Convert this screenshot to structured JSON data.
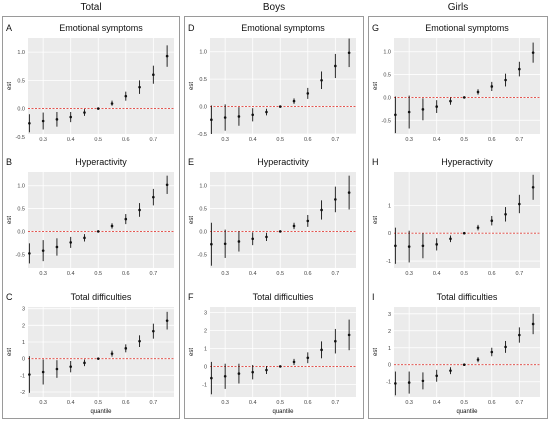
{
  "columns": [
    {
      "title": "Total"
    },
    {
      "title": "Boys"
    },
    {
      "title": "Girls"
    }
  ],
  "colors": {
    "panel_bg": "#ebebeb",
    "grid": "#ffffff",
    "point": "#111111",
    "refline": "#e0403a"
  },
  "chart_data": [
    {
      "type": "scatter",
      "panel_letter": "A",
      "title": "Emotional symptoms",
      "xlabel": "",
      "ylabel": "est",
      "x_ticks": [
        "0.3",
        "0.4",
        "0.5",
        "0.6",
        "0.7"
      ],
      "y_ticks": [
        "-0.5",
        "0.0",
        "0.5",
        "1.0"
      ],
      "xlim": [
        0.245,
        0.775
      ],
      "ylim": [
        -0.45,
        1.25
      ],
      "refline_y": 0,
      "x": [
        0.25,
        0.3,
        0.35,
        0.4,
        0.45,
        0.5,
        0.55,
        0.6,
        0.65,
        0.7,
        0.75
      ],
      "est": [
        -0.26,
        -0.22,
        -0.19,
        -0.15,
        -0.07,
        0.0,
        0.09,
        0.22,
        0.38,
        0.6,
        0.93
      ],
      "lower": [
        -0.42,
        -0.37,
        -0.32,
        -0.24,
        -0.13,
        0.0,
        0.05,
        0.14,
        0.26,
        0.44,
        0.74
      ],
      "upper": [
        -0.1,
        -0.07,
        -0.06,
        -0.06,
        -0.01,
        0.0,
        0.14,
        0.3,
        0.5,
        0.76,
        1.12
      ]
    },
    {
      "type": "scatter",
      "panel_letter": "B",
      "title": "Hyperactivity",
      "xlabel": "",
      "ylabel": "est",
      "x_ticks": [
        "0.3",
        "0.4",
        "0.5",
        "0.6",
        "0.7"
      ],
      "y_ticks": [
        "-0.5",
        "0.0",
        "0.5",
        "1.0"
      ],
      "xlim": [
        0.245,
        0.775
      ],
      "ylim": [
        -0.8,
        1.3
      ],
      "refline_y": 0,
      "x": [
        0.25,
        0.3,
        0.35,
        0.4,
        0.45,
        0.5,
        0.55,
        0.6,
        0.65,
        0.7,
        0.75
      ],
      "est": [
        -0.48,
        -0.42,
        -0.34,
        -0.24,
        -0.14,
        0.0,
        0.12,
        0.27,
        0.47,
        0.75,
        1.02
      ],
      "lower": [
        -0.7,
        -0.65,
        -0.53,
        -0.36,
        -0.22,
        0.0,
        0.06,
        0.16,
        0.32,
        0.57,
        0.82
      ],
      "upper": [
        -0.26,
        -0.19,
        -0.15,
        -0.12,
        -0.06,
        0.0,
        0.18,
        0.38,
        0.62,
        0.93,
        1.22
      ]
    },
    {
      "type": "scatter",
      "panel_letter": "C",
      "title": "Total difficulties",
      "xlabel": "quantile",
      "ylabel": "est",
      "x_ticks": [
        "0.3",
        "0.4",
        "0.5",
        "0.6",
        "0.7"
      ],
      "y_ticks": [
        "-2",
        "-1",
        "0",
        "1",
        "2",
        "3"
      ],
      "xlim": [
        0.245,
        0.775
      ],
      "ylim": [
        -2.3,
        3.1
      ],
      "refline_y": 0,
      "x": [
        0.25,
        0.3,
        0.35,
        0.4,
        0.45,
        0.5,
        0.55,
        0.6,
        0.65,
        0.7,
        0.75
      ],
      "est": [
        -0.95,
        -0.8,
        -0.62,
        -0.48,
        -0.25,
        0.0,
        0.3,
        0.62,
        1.05,
        1.65,
        2.28
      ],
      "lower": [
        -2.05,
        -1.55,
        -1.15,
        -0.82,
        -0.45,
        0.0,
        0.12,
        0.38,
        0.7,
        1.2,
        1.75
      ],
      "upper": [
        0.15,
        -0.05,
        -0.09,
        -0.14,
        -0.05,
        0.0,
        0.48,
        0.86,
        1.4,
        2.1,
        2.81
      ]
    },
    {
      "type": "scatter",
      "panel_letter": "D",
      "title": "Emotional symptoms",
      "xlabel": "",
      "ylabel": "est",
      "x_ticks": [
        "0.3",
        "0.4",
        "0.5",
        "0.6",
        "0.7"
      ],
      "y_ticks": [
        "-0.5",
        "0.0",
        "0.5",
        "1.0"
      ],
      "xlim": [
        0.245,
        0.775
      ],
      "ylim": [
        -0.5,
        1.25
      ],
      "refline_y": 0,
      "x": [
        0.25,
        0.3,
        0.35,
        0.4,
        0.45,
        0.5,
        0.55,
        0.6,
        0.65,
        0.7,
        0.75
      ],
      "est": [
        -0.24,
        -0.2,
        -0.18,
        -0.15,
        -0.1,
        0.0,
        0.1,
        0.24,
        0.48,
        0.74,
        0.98
      ],
      "lower": [
        -0.5,
        -0.44,
        -0.35,
        -0.27,
        -0.16,
        0.0,
        0.05,
        0.14,
        0.32,
        0.52,
        0.72
      ],
      "upper": [
        0.02,
        0.04,
        -0.01,
        -0.03,
        -0.04,
        0.0,
        0.15,
        0.34,
        0.64,
        0.96,
        1.24
      ]
    },
    {
      "type": "scatter",
      "panel_letter": "E",
      "title": "Hyperactivity",
      "xlabel": "",
      "ylabel": "est",
      "x_ticks": [
        "0.3",
        "0.4",
        "0.5",
        "0.6",
        "0.7"
      ],
      "y_ticks": [
        "-0.5",
        "0.0",
        "0.5",
        "1.0"
      ],
      "xlim": [
        0.245,
        0.775
      ],
      "ylim": [
        -0.8,
        1.3
      ],
      "refline_y": 0,
      "x": [
        0.25,
        0.3,
        0.35,
        0.4,
        0.45,
        0.5,
        0.55,
        0.6,
        0.65,
        0.7,
        0.75
      ],
      "est": [
        -0.28,
        -0.27,
        -0.22,
        -0.16,
        -0.12,
        0.0,
        0.12,
        0.23,
        0.47,
        0.7,
        0.85
      ],
      "lower": [
        -0.75,
        -0.58,
        -0.44,
        -0.3,
        -0.21,
        0.0,
        0.05,
        0.1,
        0.26,
        0.42,
        0.48
      ],
      "upper": [
        0.19,
        0.04,
        0.0,
        -0.02,
        -0.03,
        0.0,
        0.19,
        0.36,
        0.68,
        0.98,
        1.22
      ]
    },
    {
      "type": "scatter",
      "panel_letter": "F",
      "title": "Total difficulties",
      "xlabel": "quantile",
      "ylabel": "est",
      "x_ticks": [
        "0.3",
        "0.4",
        "0.5",
        "0.6",
        "0.7"
      ],
      "y_ticks": [
        "-1",
        "0",
        "1",
        "2",
        "3"
      ],
      "xlim": [
        0.245,
        0.775
      ],
      "ylim": [
        -1.7,
        3.3
      ],
      "refline_y": 0,
      "x": [
        0.25,
        0.3,
        0.35,
        0.4,
        0.45,
        0.5,
        0.55,
        0.6,
        0.65,
        0.7,
        0.75
      ],
      "est": [
        -0.65,
        -0.55,
        -0.4,
        -0.32,
        -0.2,
        0.0,
        0.25,
        0.48,
        0.92,
        1.4,
        1.75
      ],
      "lower": [
        -1.55,
        -1.25,
        -0.95,
        -0.72,
        -0.42,
        0.0,
        0.08,
        0.18,
        0.45,
        0.72,
        0.9
      ],
      "upper": [
        0.25,
        0.15,
        0.15,
        0.08,
        0.02,
        0.0,
        0.42,
        0.78,
        1.39,
        2.08,
        2.6
      ]
    },
    {
      "type": "scatter",
      "panel_letter": "G",
      "title": "Emotional symptoms",
      "xlabel": "",
      "ylabel": "est",
      "x_ticks": [
        "0.3",
        "0.4",
        "0.5",
        "0.6",
        "0.7"
      ],
      "y_ticks": [
        "-0.5",
        "0.0",
        "0.5",
        "1.0"
      ],
      "xlim": [
        0.245,
        0.775
      ],
      "ylim": [
        -0.8,
        1.3
      ],
      "refline_y": 0,
      "x": [
        0.25,
        0.3,
        0.35,
        0.4,
        0.45,
        0.5,
        0.55,
        0.6,
        0.65,
        0.7,
        0.75
      ],
      "est": [
        -0.38,
        -0.32,
        -0.26,
        -0.2,
        -0.08,
        0.0,
        0.12,
        0.24,
        0.38,
        0.62,
        0.98
      ],
      "lower": [
        -0.78,
        -0.68,
        -0.5,
        -0.34,
        -0.16,
        0.0,
        0.06,
        0.14,
        0.24,
        0.46,
        0.76
      ],
      "upper": [
        0.02,
        0.04,
        -0.02,
        -0.06,
        0.0,
        0.0,
        0.18,
        0.34,
        0.52,
        0.78,
        1.2
      ]
    },
    {
      "type": "scatter",
      "panel_letter": "H",
      "title": "Hyperactivity",
      "xlabel": "",
      "ylabel": "est",
      "x_ticks": [
        "0.3",
        "0.4",
        "0.5",
        "0.6",
        "0.7"
      ],
      "y_ticks": [
        "-1",
        "0",
        "1"
      ],
      "xlim": [
        0.245,
        0.775
      ],
      "ylim": [
        -1.25,
        2.2
      ],
      "refline_y": 0,
      "x": [
        0.25,
        0.3,
        0.35,
        0.4,
        0.45,
        0.5,
        0.55,
        0.6,
        0.65,
        0.7,
        0.75
      ],
      "est": [
        -0.45,
        -0.48,
        -0.45,
        -0.4,
        -0.2,
        0.0,
        0.2,
        0.45,
        0.68,
        1.05,
        1.65
      ],
      "lower": [
        -1.1,
        -1.05,
        -0.9,
        -0.62,
        -0.32,
        0.0,
        0.1,
        0.28,
        0.42,
        0.72,
        1.2
      ],
      "upper": [
        0.2,
        0.09,
        0.0,
        -0.18,
        -0.08,
        0.0,
        0.3,
        0.62,
        0.94,
        1.38,
        2.1
      ]
    },
    {
      "type": "scatter",
      "panel_letter": "I",
      "title": "Total difficulties",
      "xlabel": "quantile",
      "ylabel": "est",
      "x_ticks": [
        "0.3",
        "0.4",
        "0.5",
        "0.6",
        "0.7"
      ],
      "y_ticks": [
        "-1",
        "0",
        "1",
        "2",
        "3"
      ],
      "xlim": [
        0.245,
        0.775
      ],
      "ylim": [
        -1.9,
        3.4
      ],
      "refline_y": 0,
      "x": [
        0.25,
        0.3,
        0.35,
        0.4,
        0.45,
        0.5,
        0.55,
        0.6,
        0.65,
        0.7,
        0.75
      ],
      "est": [
        -1.1,
        -1.05,
        -0.95,
        -0.65,
        -0.35,
        0.0,
        0.3,
        0.75,
        1.05,
        1.75,
        2.4
      ],
      "lower": [
        -1.8,
        -1.7,
        -1.45,
        -1.0,
        -0.55,
        0.0,
        0.15,
        0.5,
        0.7,
        1.3,
        1.8
      ],
      "upper": [
        -0.4,
        -0.4,
        -0.45,
        -0.3,
        -0.15,
        0.0,
        0.45,
        1.0,
        1.4,
        2.2,
        3.0
      ]
    }
  ]
}
